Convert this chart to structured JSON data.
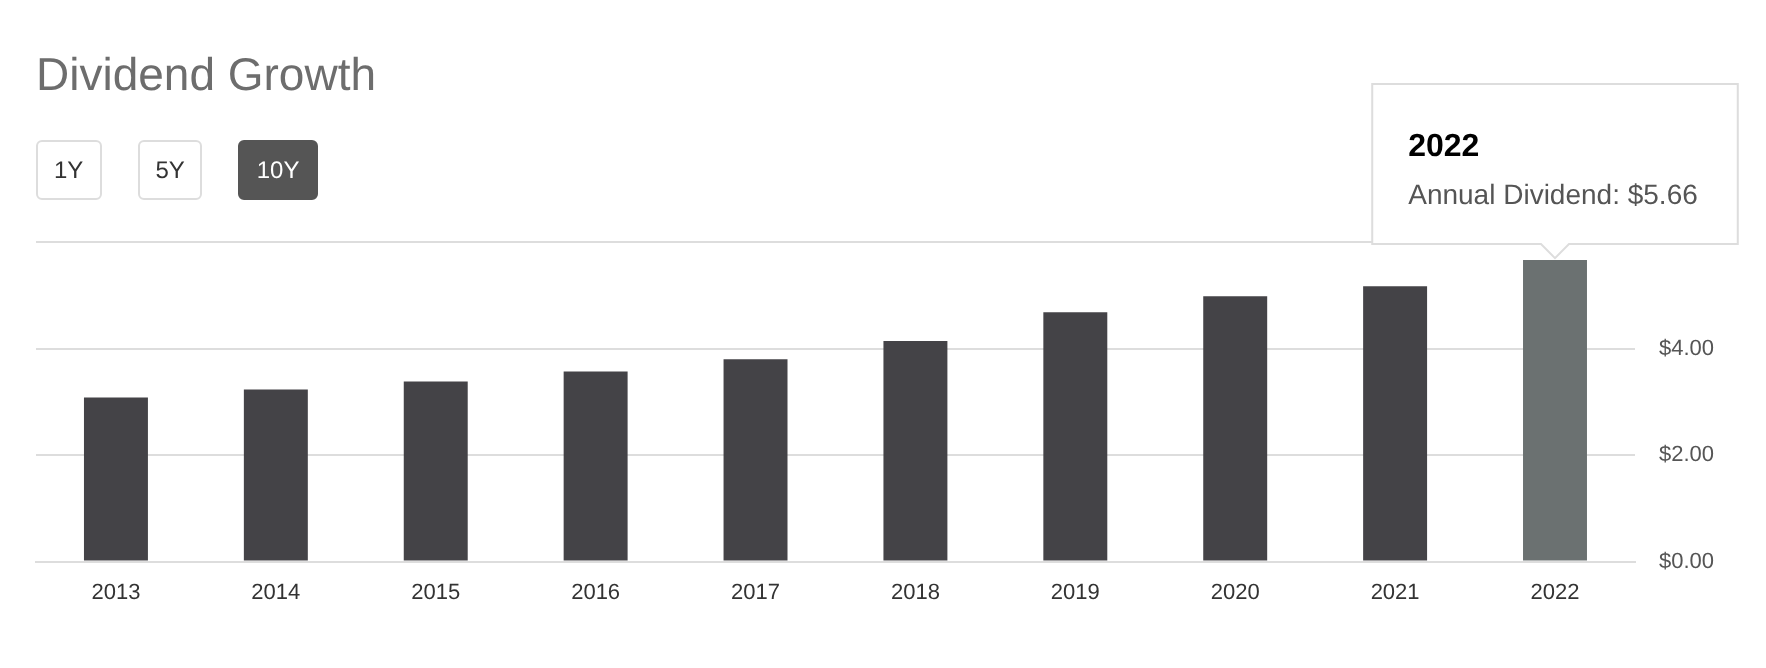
{
  "chart_data": {
    "type": "bar",
    "title": "Dividend Growth",
    "categories": [
      "2013",
      "2014",
      "2015",
      "2016",
      "2017",
      "2018",
      "2019",
      "2020",
      "2021",
      "2022"
    ],
    "values": [
      3.08,
      3.23,
      3.38,
      3.57,
      3.8,
      4.14,
      4.68,
      4.98,
      5.17,
      5.66
    ],
    "colors": [
      "#444347",
      "#444347",
      "#444347",
      "#444347",
      "#444347",
      "#444347",
      "#444347",
      "#444347",
      "#444347",
      "#6b7171"
    ],
    "ylim": [
      0,
      6
    ],
    "yticks": [
      {
        "value": 0,
        "label": "$0.00"
      },
      {
        "value": 2,
        "label": "$2.00"
      },
      {
        "value": 4,
        "label": "$4.00"
      },
      {
        "value": 6,
        "label": null
      }
    ],
    "grid": "y",
    "legend": false,
    "annotations": [
      "1Y",
      "5Y",
      "10Y",
      {
        "text": "Annual Dividend: $5.66",
        "x": "2022",
        "y": 5.66
      }
    ]
  }
}
